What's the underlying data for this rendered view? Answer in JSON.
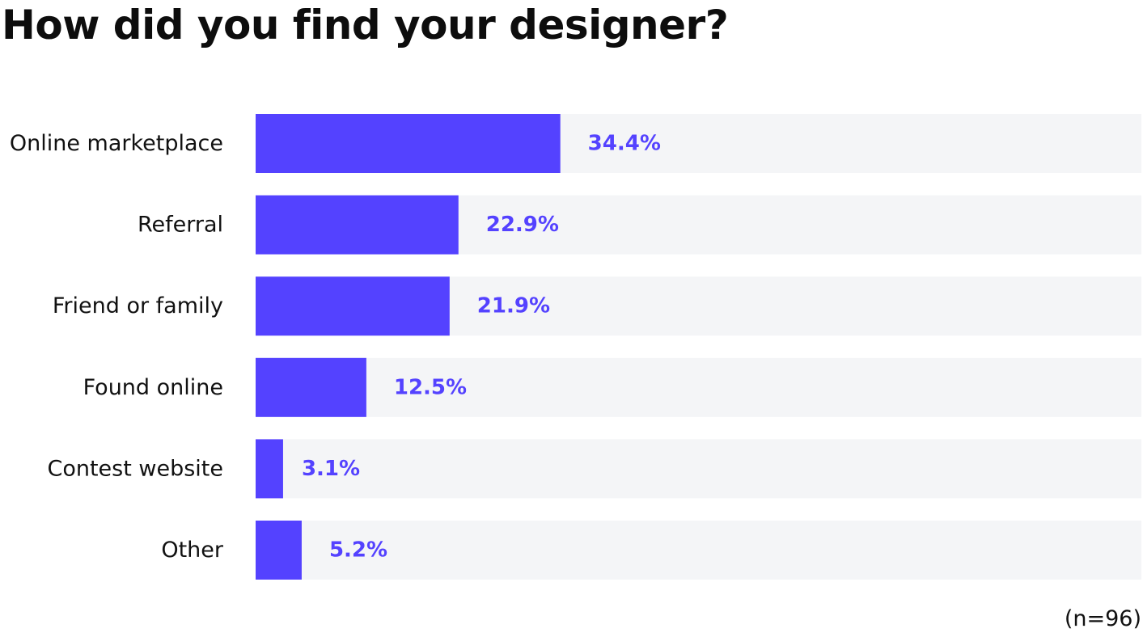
{
  "title": "How did you find your designer?",
  "footnote": "(n=96)",
  "colors": {
    "bar": "#5442ff",
    "track": "#f4f5f7",
    "value_label": "#5442ff",
    "category_label": "#111111"
  },
  "chart_data": {
    "type": "bar",
    "orientation": "horizontal",
    "title": "How did you find your designer?",
    "categories": [
      "Online marketplace",
      "Referral",
      "Friend or family",
      "Found online",
      "Contest website",
      "Other"
    ],
    "values": [
      34.4,
      22.9,
      21.9,
      12.5,
      3.1,
      5.2
    ],
    "value_labels": [
      "34.4%",
      "22.9%",
      "21.9%",
      "12.5%",
      "3.1%",
      "5.2%"
    ],
    "xlim": [
      0,
      100
    ],
    "unit": "%",
    "grid": false,
    "legend": "none",
    "sample_size": "(n=96)"
  }
}
